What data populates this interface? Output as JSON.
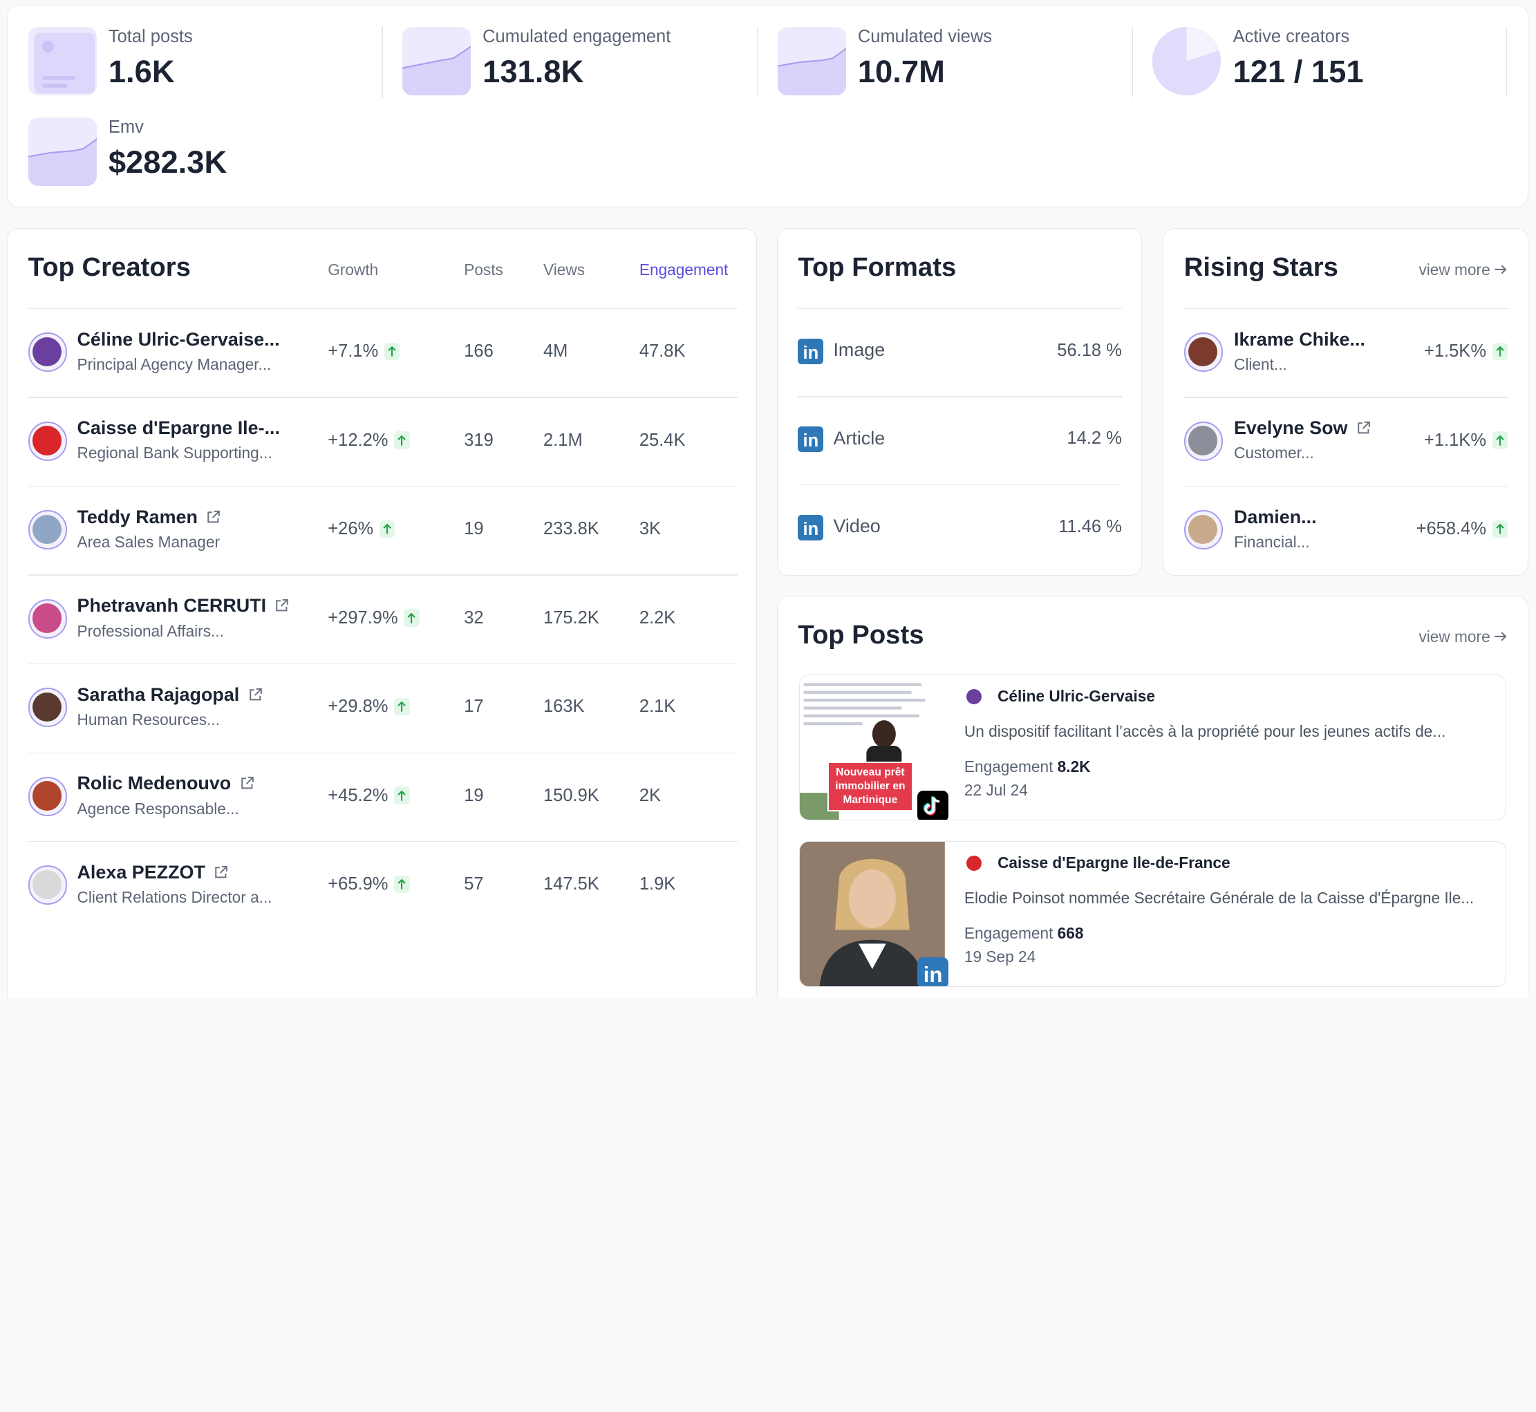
{
  "kpis": [
    {
      "label": "Total posts",
      "value": "1.6K",
      "icon": "image-placeholder-icon"
    },
    {
      "label": "Cumulated engagement",
      "value": "131.8K",
      "icon": "area-chart-icon"
    },
    {
      "label": "Cumulated views",
      "value": "10.7M",
      "icon": "area-chart-icon"
    },
    {
      "label": "Active creators",
      "value": "121 / 151",
      "icon": "pie-chart-icon"
    },
    {
      "label": "Emv",
      "value": "$282.3K",
      "icon": "area-chart-icon"
    }
  ],
  "top_creators": {
    "title": "Top Creators",
    "headers": {
      "growth": "Growth",
      "posts": "Posts",
      "views": "Views",
      "engagement": "Engagement"
    },
    "rows": [
      {
        "name": "Céline Ulric-Gervaise...",
        "role": "Principal Agency Manager...",
        "growth": "+7.1%",
        "posts": "166",
        "views": "4M",
        "engagement": "47.8K",
        "external_link": false,
        "avatar_color": "#6b3fa0"
      },
      {
        "name": "Caisse d'Epargne Ile-...",
        "role": "Regional Bank Supporting...",
        "growth": "+12.2%",
        "posts": "319",
        "views": "2.1M",
        "engagement": "25.4K",
        "external_link": false,
        "avatar_color": "#d9262b"
      },
      {
        "name": "Teddy Ramen",
        "role": "Area Sales Manager",
        "growth": "+26%",
        "posts": "19",
        "views": "233.8K",
        "engagement": "3K",
        "external_link": true,
        "avatar_color": "#8fa6c6"
      },
      {
        "name": "Phetravanh CERRUTI",
        "role": "Professional Affairs...",
        "growth": "+297.9%",
        "posts": "32",
        "views": "175.2K",
        "engagement": "2.2K",
        "external_link": true,
        "avatar_color": "#c94b88"
      },
      {
        "name": "Saratha Rajagopal",
        "role": "Human Resources...",
        "growth": "+29.8%",
        "posts": "17",
        "views": "163K",
        "engagement": "2.1K",
        "external_link": true,
        "avatar_color": "#5a3a2e"
      },
      {
        "name": "Rolic Medenouvo",
        "role": "Agence Responsable...",
        "growth": "+45.2%",
        "posts": "19",
        "views": "150.9K",
        "engagement": "2K",
        "external_link": true,
        "avatar_color": "#b0452e"
      },
      {
        "name": "Alexa PEZZOT",
        "role": "Client Relations Director a...",
        "growth": "+65.9%",
        "posts": "57",
        "views": "147.5K",
        "engagement": "1.9K",
        "external_link": true,
        "avatar_color": "#d9d9d9"
      }
    ]
  },
  "top_formats": {
    "title": "Top Formats",
    "items": [
      {
        "label": "Image",
        "value": "56.18 %",
        "icon": "linkedin-icon"
      },
      {
        "label": "Article",
        "value": "14.2 %",
        "icon": "linkedin-icon"
      },
      {
        "label": "Video",
        "value": "11.46 %",
        "icon": "linkedin-icon"
      }
    ]
  },
  "rising_stars": {
    "title": "Rising Stars",
    "view_more": "view more",
    "items": [
      {
        "name": "Ikrame Chike...",
        "role": "Client...",
        "growth": "+1.5K%",
        "external_link": false,
        "avatar_color": "#7a3b2e"
      },
      {
        "name": "Evelyne Sow",
        "role": "Customer...",
        "growth": "+1.1K%",
        "external_link": true,
        "avatar_color": "#8a8f99"
      },
      {
        "name": "Damien...",
        "role": "Financial...",
        "growth": "+658.4%",
        "external_link": false,
        "avatar_color": "#c9a98c"
      }
    ]
  },
  "top_posts": {
    "title": "Top Posts",
    "view_more": "view more",
    "items": [
      {
        "author": "Céline Ulric-Gervaise",
        "text": "Un dispositif facilitant l’accès à la propriété pour les jeunes actifs de...",
        "engagement_label": "Engagement",
        "engagement": "8.2K",
        "date": "22 Jul 24",
        "platform": "tiktok-icon",
        "thumb_caption": "Nouveau prêt immobilier en Martinique"
      },
      {
        "author": "Caisse d'Epargne Ile-de-France",
        "text": "Elodie Poinsot nommée Secrétaire Générale de la Caisse d'Épargne Ile...",
        "engagement_label": "Engagement",
        "engagement": "668",
        "date": "19 Sep 24",
        "platform": "linkedin-icon"
      }
    ]
  },
  "colors": {
    "accent": "#5b4ce0",
    "positive": "#22a34a",
    "linkedin": "#2f78b7",
    "brand_red": "#d9262b"
  }
}
